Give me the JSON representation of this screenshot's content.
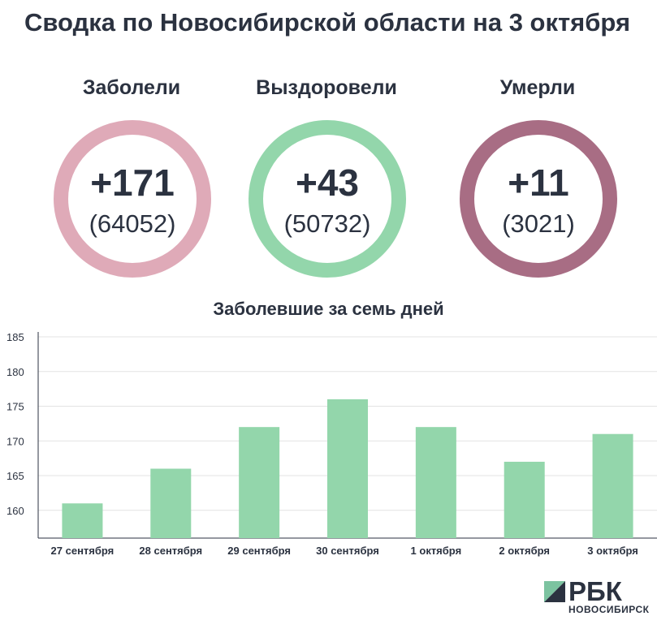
{
  "header": {
    "title": "Сводка по Новосибирской области на 3 октября"
  },
  "stats": [
    {
      "label": "Заболели",
      "delta": "+171",
      "total": "(64052)",
      "color": "#dfaab8"
    },
    {
      "label": "Выздоровели",
      "delta": "+43",
      "total": "(50732)",
      "color": "#93d6ab"
    },
    {
      "label": "Умерли",
      "delta": "+11",
      "total": "(3021)",
      "color": "#a86d84"
    }
  ],
  "logo": {
    "word": "РБК",
    "city": "НОВОСИБИРСК",
    "colors": [
      "#7cc3a0",
      "#2b3240"
    ]
  },
  "chart_data": {
    "type": "bar",
    "title": "Заболевшие за семь дней",
    "categories": [
      "27 сентября",
      "28 сентября",
      "29 сентября",
      "30 сентября",
      "1 октября",
      "2 октября",
      "3 октября"
    ],
    "values": [
      161,
      166,
      172,
      176,
      172,
      167,
      171
    ],
    "ylim": [
      156,
      185
    ],
    "yticks": [
      160,
      165,
      170,
      175,
      180,
      185
    ],
    "grid": true,
    "bar_color": "#93d6ab",
    "xlabel": "",
    "ylabel": ""
  }
}
